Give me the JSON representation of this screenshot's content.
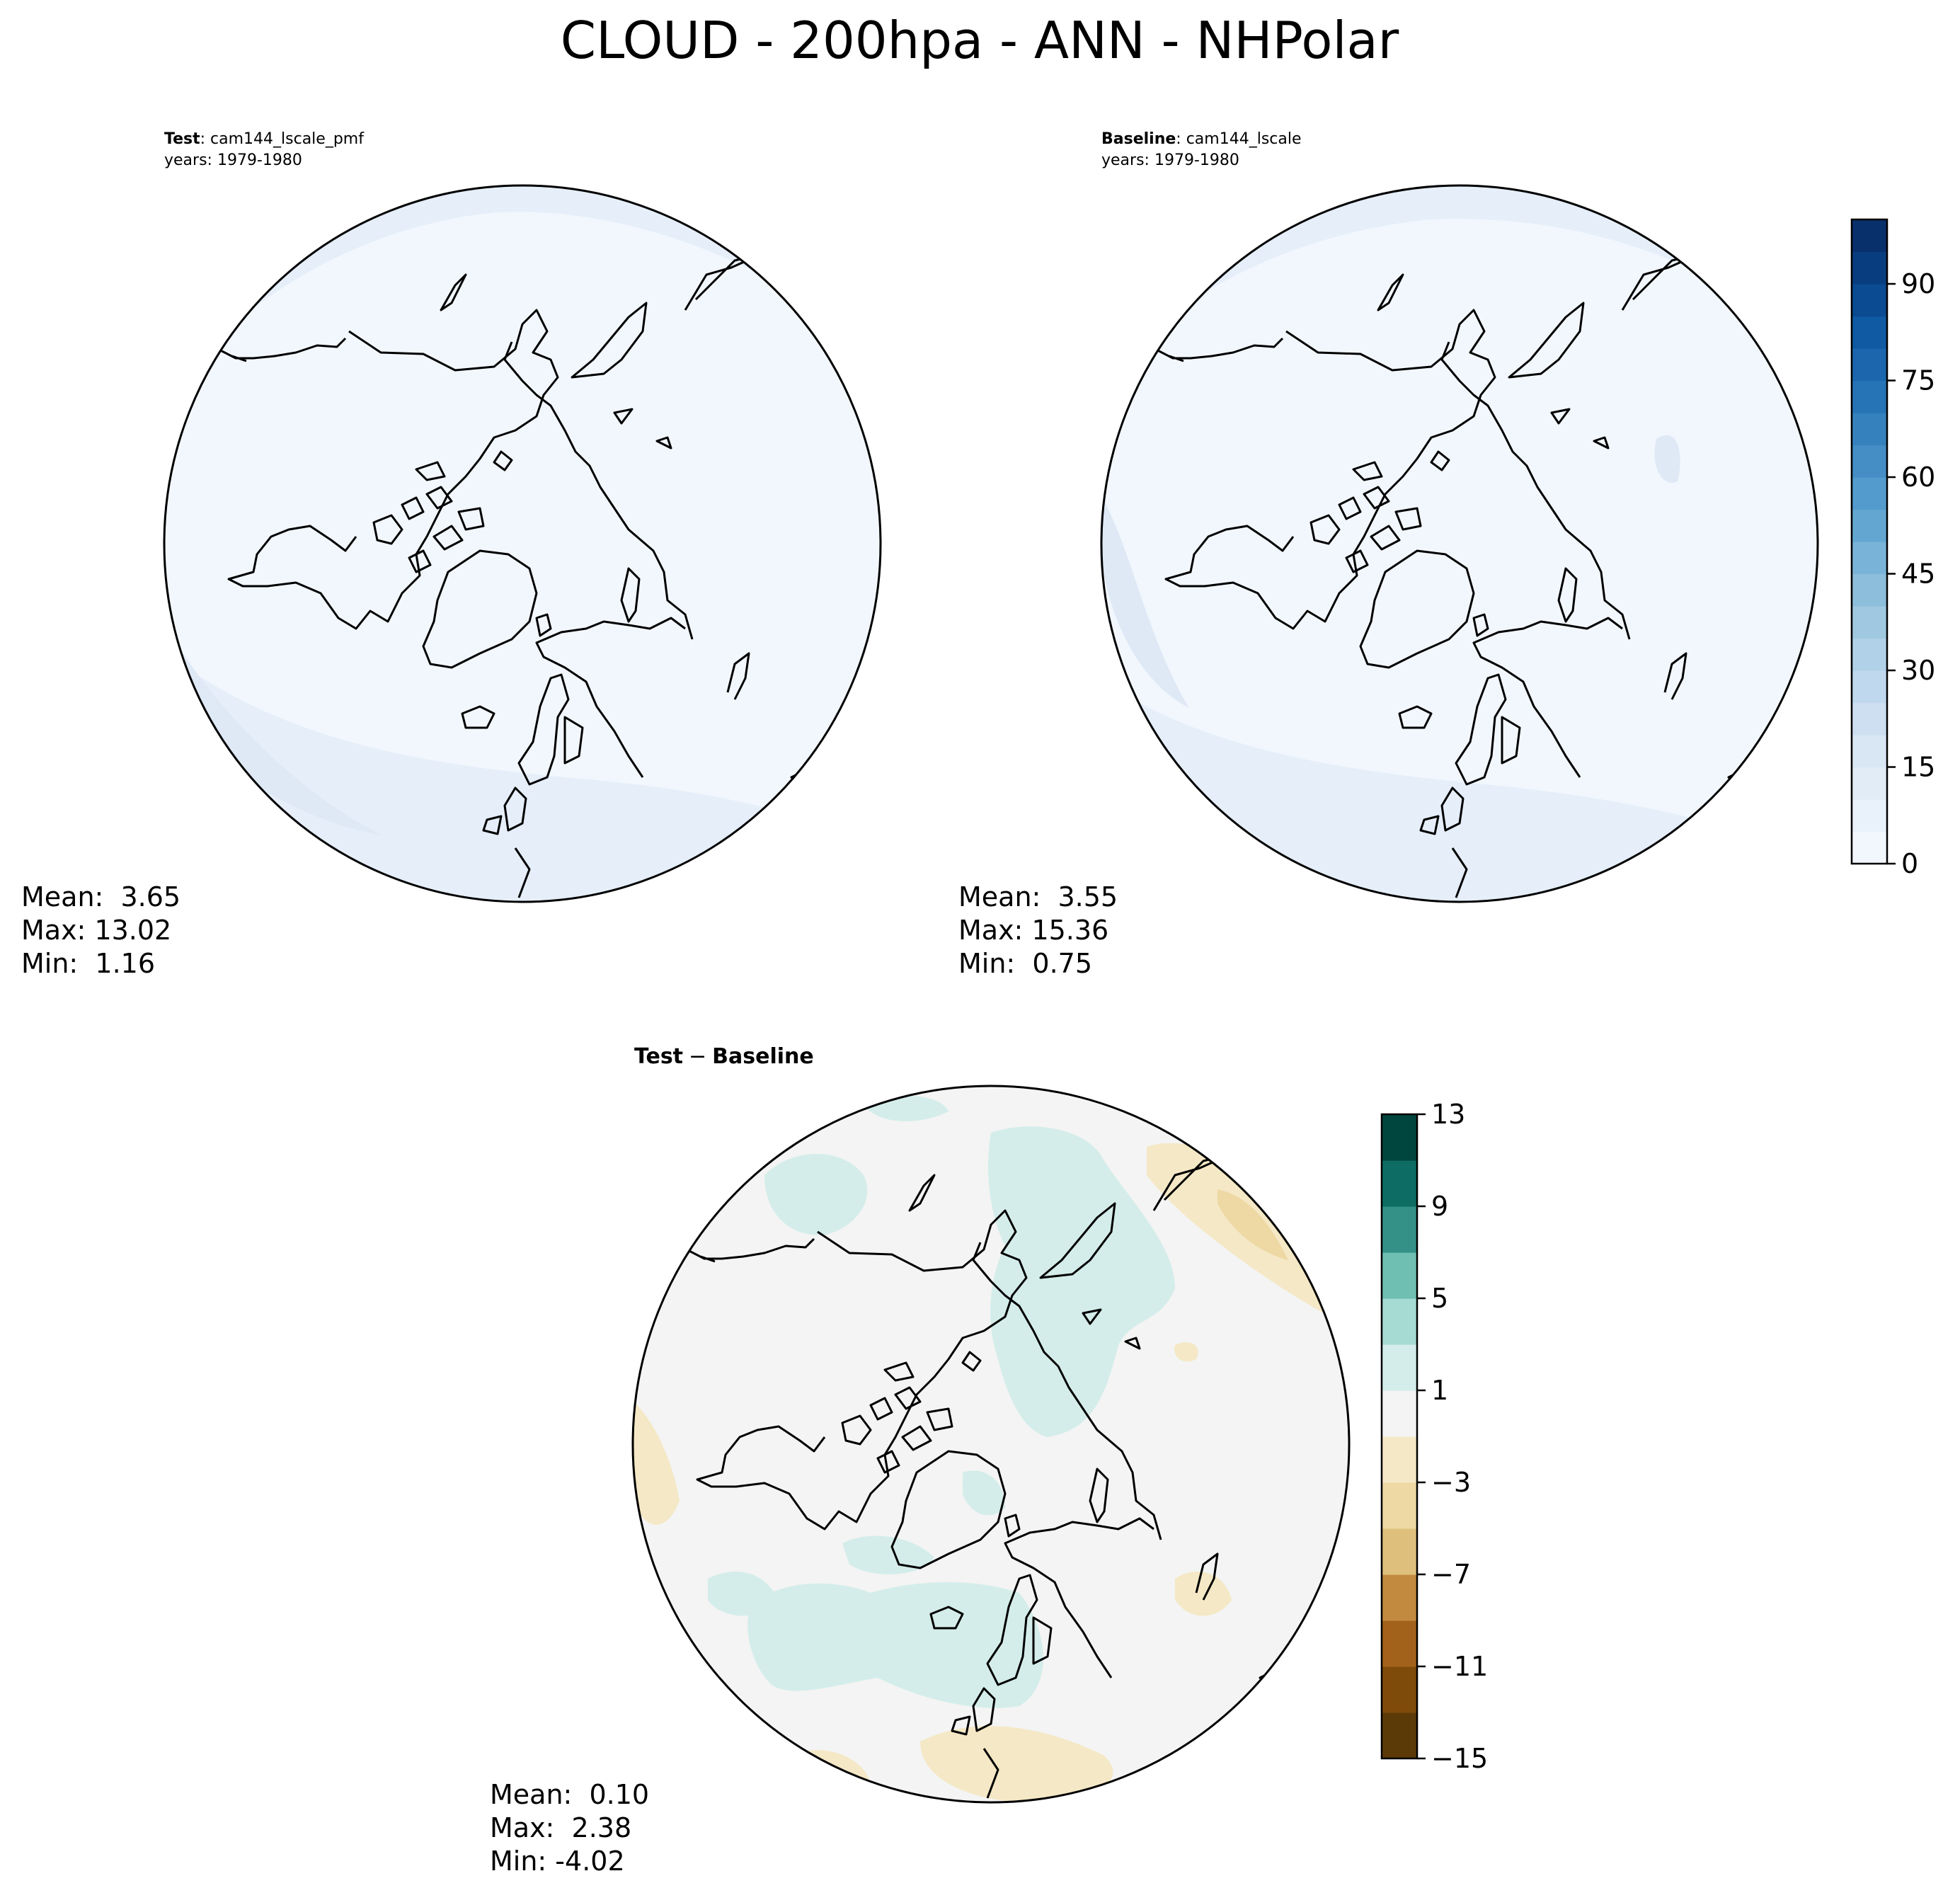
{
  "figure": {
    "title": "CLOUD - 200hpa - ANN - NHPolar"
  },
  "panels": [
    {
      "id": "test",
      "label_bold": "Test",
      "label_rest": ": cam144_lscale_pmf",
      "years": "years: 1979-1980",
      "stats": [
        "Mean:  3.65",
        "Max: 13.02",
        "Min:  1.16"
      ]
    },
    {
      "id": "baseline",
      "label_bold": "Baseline",
      "label_rest": ": cam144_lscale",
      "years": "years: 1979-1980",
      "stats": [
        "Mean:  3.55",
        "Max: 15.36",
        "Min:  0.75"
      ]
    },
    {
      "id": "diff",
      "label_bold": "Test",
      "label_minus": "−",
      "label_bold2": "Baseline",
      "stats": [
        "Mean:  0.10",
        "Max:  2.38",
        "Min: -4.02"
      ]
    }
  ],
  "colorbars": {
    "main": {
      "ticks": [
        "0",
        "15",
        "30",
        "45",
        "60",
        "75",
        "90"
      ],
      "colors": [
        "#f2f7fd",
        "#e9f1fa",
        "#e1ecf7",
        "#d9e7f5",
        "#cddff0",
        "#c0d8ed",
        "#b0d1e7",
        "#a0c9e1",
        "#8dbedc",
        "#79b3d8",
        "#64a6d2",
        "#539bcc",
        "#448dc5",
        "#3581bd",
        "#2673b5",
        "#1b66ad",
        "#0f5aa3",
        "#0b4b92",
        "#083e80",
        "#08306b"
      ]
    },
    "diff": {
      "ticks": [
        "13",
        "9",
        "5",
        "1",
        "−3",
        "−7",
        "−11",
        "−15"
      ],
      "colors": [
        "#5c3a08",
        "#7f4b0b",
        "#a3621b",
        "#c28a3f",
        "#dec07c",
        "#eed8a3",
        "#f5e8c6",
        "#f3f4f3",
        "#d4edea",
        "#a5dbd2",
        "#6fbfb2",
        "#349188",
        "#0d6d65",
        "#01463e"
      ]
    }
  }
}
